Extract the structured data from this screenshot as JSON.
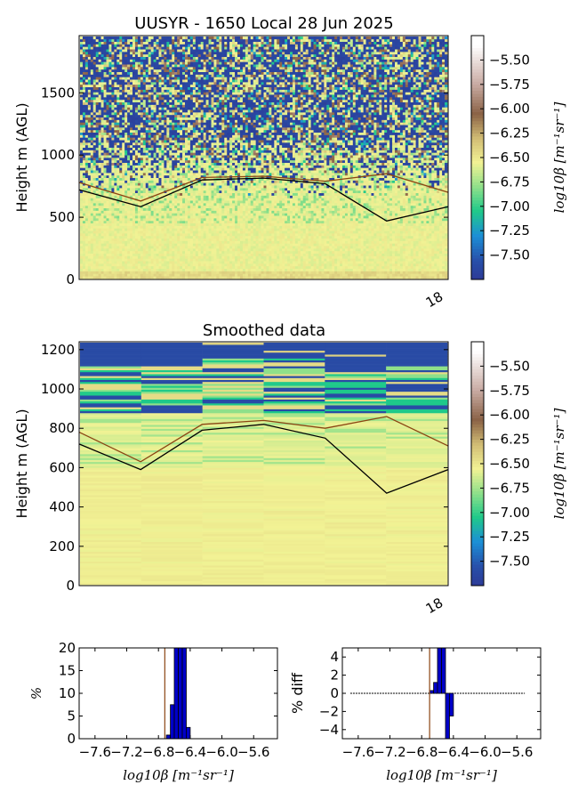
{
  "chart_data": [
    {
      "type": "heatmap",
      "title": "UUSYR - 1650 Local 28 Jun 2025",
      "ylabel": "Height m (AGL)",
      "ylim": [
        0,
        1960
      ],
      "yticks": [
        0,
        500,
        1000,
        1500
      ],
      "xticks": [
        "18"
      ],
      "colorbar": {
        "label": "log10β [m⁻¹sr⁻¹]",
        "range": [
          -7.75,
          -5.25
        ],
        "ticks": [
          "-5.50",
          "-5.75",
          "-6.00",
          "-6.25",
          "-6.50",
          "-6.75",
          "-7.00",
          "-7.25",
          "-7.50"
        ],
        "colormap": [
          "#2d3a96",
          "#1c8fd6",
          "#1fc98a",
          "#8fe08a",
          "#f2f294",
          "#d1bc74",
          "#8a6246",
          "#c8aaa2",
          "#ffffff"
        ]
      },
      "series": [
        {
          "color": "#000000",
          "x": [
            0,
            1,
            2,
            3,
            4,
            5,
            6
          ],
          "values": [
            720,
            585,
            800,
            815,
            770,
            470,
            585
          ]
        },
        {
          "color": "#8b4513",
          "x": [
            0,
            1,
            2,
            3,
            4,
            5,
            6
          ],
          "values": [
            780,
            630,
            820,
            830,
            790,
            850,
            700
          ]
        }
      ]
    },
    {
      "type": "heatmap",
      "title": "Smoothed data",
      "ylabel": "Height m (AGL)",
      "ylim": [
        0,
        1240
      ],
      "yticks": [
        0,
        200,
        400,
        600,
        800,
        1000,
        1200
      ],
      "xticks": [
        "18"
      ],
      "colorbar": {
        "label": "log10β [m⁻¹sr⁻¹]",
        "range": [
          -7.75,
          -5.25
        ],
        "ticks": [
          "-5.50",
          "-5.75",
          "-6.00",
          "-6.25",
          "-6.50",
          "-6.75",
          "-7.00",
          "-7.25",
          "-7.50"
        ]
      },
      "series": [
        {
          "color": "#000000",
          "x": [
            0,
            1,
            2,
            3,
            4,
            5,
            6
          ],
          "values": [
            720,
            590,
            790,
            820,
            750,
            470,
            590
          ]
        },
        {
          "color": "#8b4513",
          "x": [
            0,
            1,
            2,
            3,
            4,
            5,
            6
          ],
          "values": [
            780,
            630,
            820,
            840,
            800,
            860,
            710
          ]
        }
      ]
    },
    {
      "type": "bar",
      "ylabel": "%",
      "xlabel": "log10β [m⁻¹sr⁻¹]",
      "xlim": [
        -7.8,
        -5.3
      ],
      "ylim": [
        0,
        20
      ],
      "xticks": [
        "-7.6",
        "-7.2",
        "-6.8",
        "-6.4",
        "-6.0",
        "-5.6"
      ],
      "yticks": [
        0,
        5,
        10,
        15,
        20
      ],
      "vline": -6.72,
      "bin_width": 0.05,
      "bins": [
        -6.7,
        -6.65,
        -6.6,
        -6.55,
        -6.5,
        -6.45
      ],
      "values": [
        0.8,
        7.5,
        20,
        20,
        20,
        2.5
      ]
    },
    {
      "type": "bar",
      "ylabel": "% diff",
      "xlabel": "log10β [m⁻¹sr⁻¹]",
      "xlim": [
        -7.8,
        -5.3
      ],
      "ylim": [
        -5,
        5
      ],
      "xticks": [
        "-7.6",
        "-7.2",
        "-6.8",
        "-6.4",
        "-6.0",
        "-5.6"
      ],
      "yticks": [
        -4,
        -2,
        0,
        2,
        4
      ],
      "vline": -6.7,
      "bin_width": 0.05,
      "bins": [
        -6.7,
        -6.65,
        -6.6,
        -6.55,
        -6.5,
        -6.45
      ],
      "values": [
        0.3,
        1.2,
        5,
        5,
        -5,
        -2.5
      ]
    }
  ]
}
